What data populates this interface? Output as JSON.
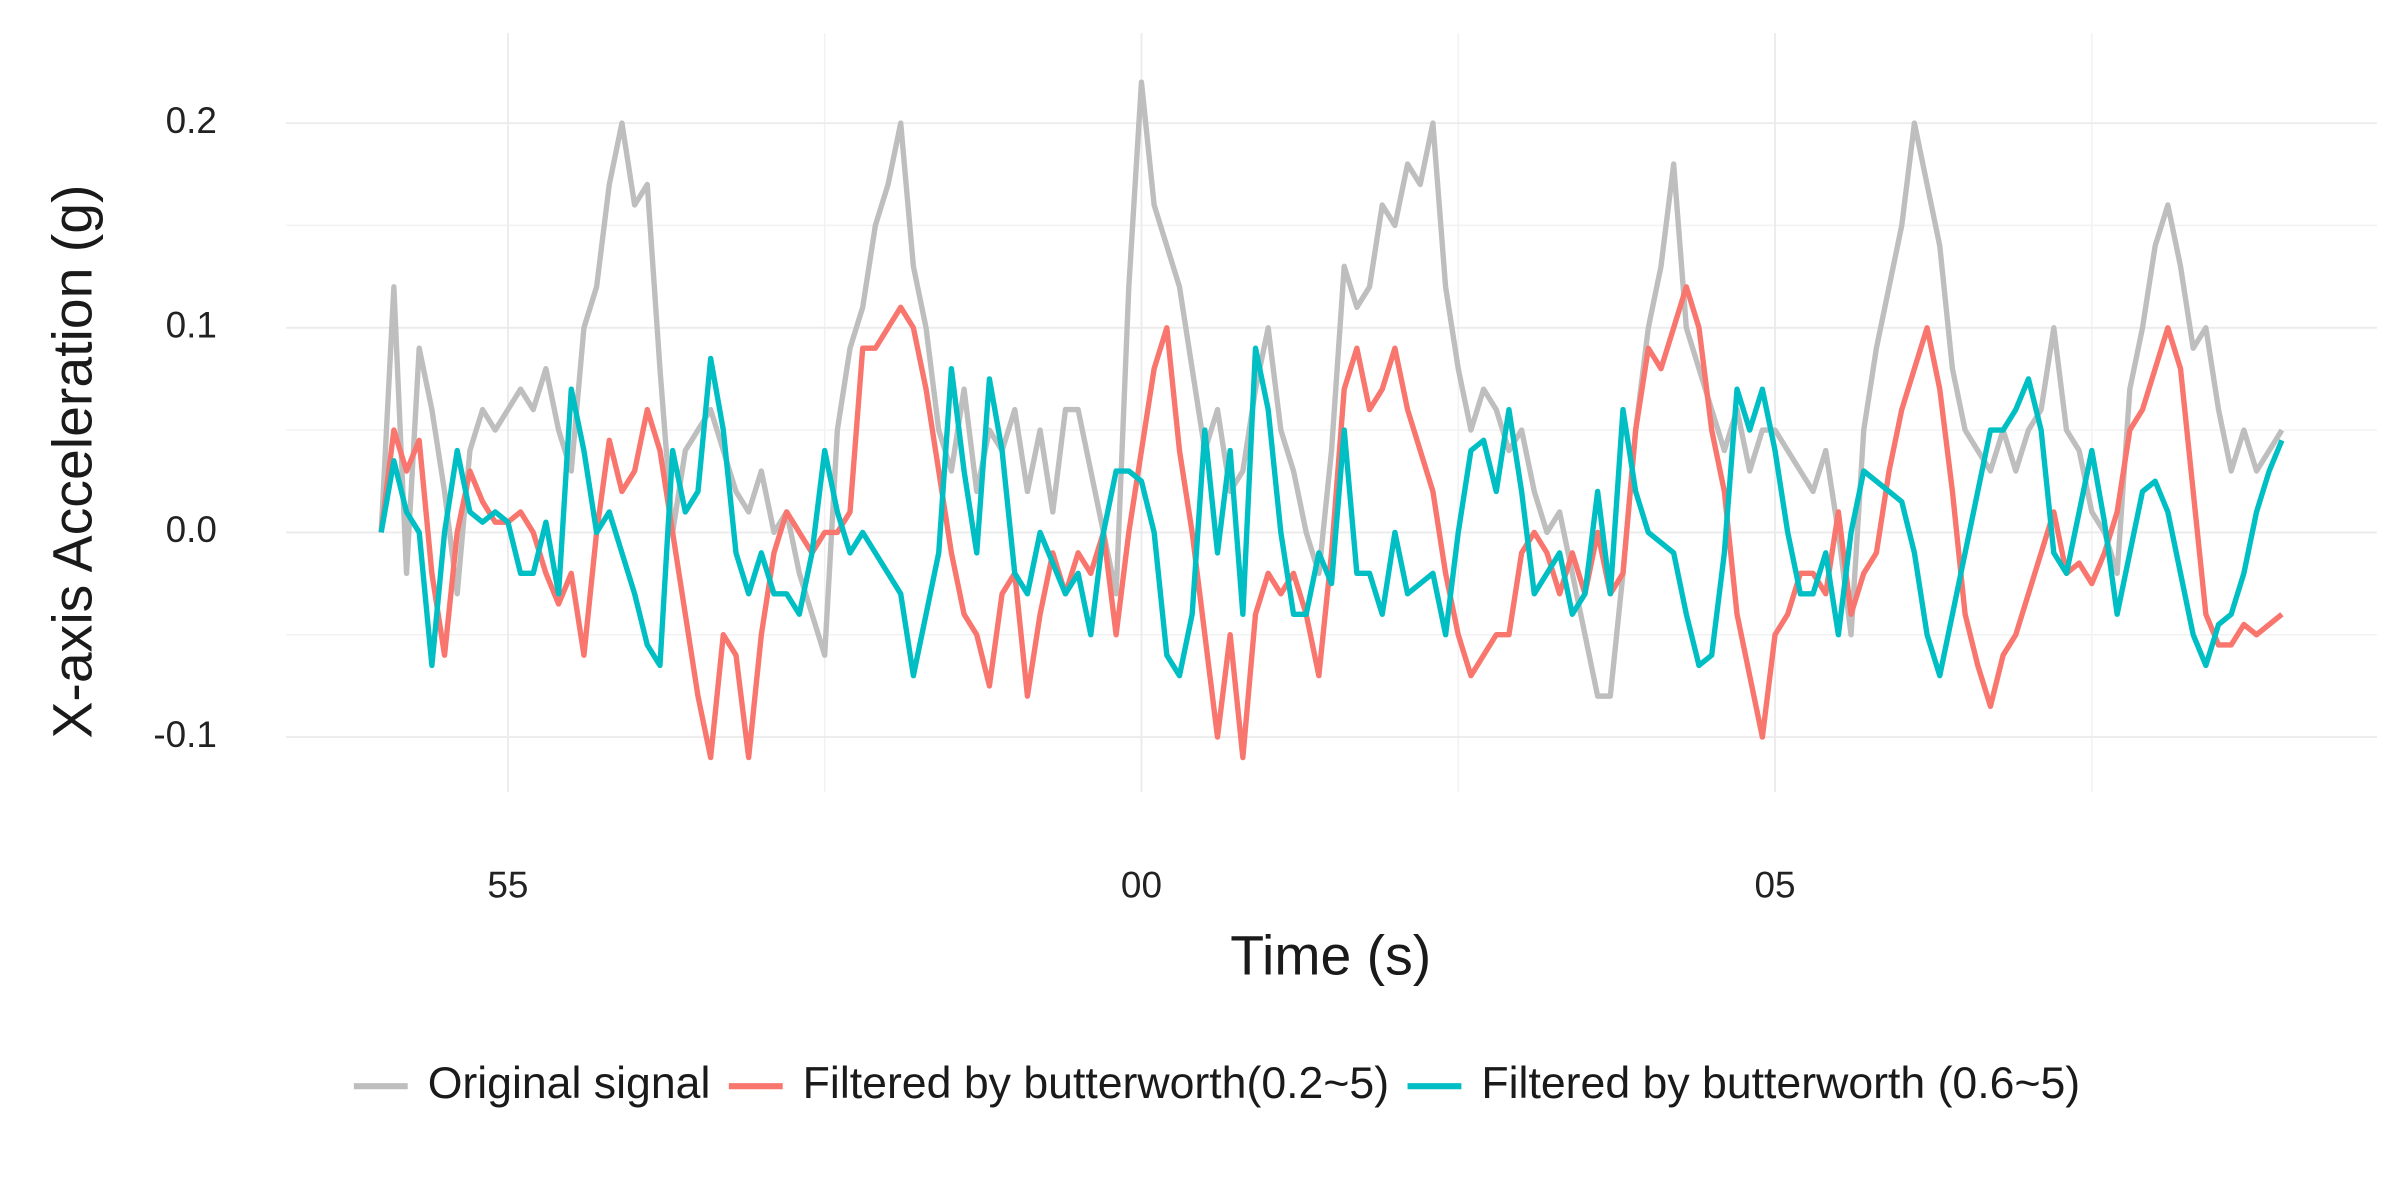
{
  "chart_data": {
    "type": "line",
    "x_label": "Time (s)",
    "y_label": "X-axis Acceleration (g)",
    "x": [
      54.0,
      54.1,
      54.2,
      54.3,
      54.4,
      54.5,
      54.6,
      54.7,
      54.8,
      54.9,
      55.0,
      55.1,
      55.2,
      55.3,
      55.4,
      55.5,
      55.6,
      55.7,
      55.8,
      55.9,
      56.0,
      56.1,
      56.2,
      56.3,
      56.4,
      56.5,
      56.6,
      56.7,
      56.8,
      56.9,
      57.0,
      57.1,
      57.2,
      57.3,
      57.4,
      57.5,
      57.6,
      57.7,
      57.8,
      57.9,
      58.0,
      58.1,
      58.2,
      58.3,
      58.4,
      58.5,
      58.6,
      58.7,
      58.8,
      58.9,
      59.0,
      59.1,
      59.2,
      59.3,
      59.4,
      59.5,
      59.6,
      59.7,
      59.8,
      59.9,
      60.0,
      60.1,
      60.2,
      60.3,
      60.4,
      60.5,
      60.6,
      60.7,
      60.8,
      60.9,
      61.0,
      61.1,
      61.2,
      61.3,
      61.4,
      61.5,
      61.6,
      61.7,
      61.8,
      61.9,
      62.0,
      62.1,
      62.2,
      62.3,
      62.4,
      62.5,
      62.6,
      62.7,
      62.8,
      62.9,
      63.0,
      63.1,
      63.2,
      63.3,
      63.4,
      63.5,
      63.6,
      63.7,
      63.8,
      63.9,
      64.0,
      64.1,
      64.2,
      64.3,
      64.4,
      64.5,
      64.6,
      64.7,
      64.8,
      64.9,
      65.0,
      65.1,
      65.2,
      65.3,
      65.4,
      65.5,
      65.6,
      65.7,
      65.8,
      65.9,
      66.0,
      66.1,
      66.2,
      66.3,
      66.4,
      66.5,
      66.6,
      66.7,
      66.8,
      66.9,
      67.0,
      67.1,
      67.2,
      67.3,
      67.4,
      67.5,
      67.6,
      67.7,
      67.8,
      67.9,
      68.0,
      68.1,
      68.2,
      68.3,
      68.4,
      68.5,
      68.6,
      68.7,
      68.8,
      68.9,
      69.0
    ],
    "series": [
      {
        "name": "Original signal",
        "color": "#bebebe",
        "values": [
          0.0,
          0.12,
          -0.02,
          0.09,
          0.06,
          0.02,
          -0.03,
          0.04,
          0.06,
          0.05,
          0.06,
          0.07,
          0.06,
          0.08,
          0.05,
          0.03,
          0.1,
          0.12,
          0.17,
          0.2,
          0.16,
          0.17,
          0.08,
          0.0,
          0.04,
          0.05,
          0.06,
          0.04,
          0.02,
          0.01,
          0.03,
          0.0,
          0.01,
          -0.02,
          -0.04,
          -0.06,
          0.05,
          0.09,
          0.11,
          0.15,
          0.17,
          0.2,
          0.13,
          0.1,
          0.05,
          0.03,
          0.07,
          0.02,
          0.05,
          0.04,
          0.06,
          0.02,
          0.05,
          0.01,
          0.06,
          0.06,
          0.03,
          0.0,
          -0.03,
          0.12,
          0.22,
          0.16,
          0.14,
          0.12,
          0.08,
          0.04,
          0.06,
          0.02,
          0.03,
          0.07,
          0.1,
          0.05,
          0.03,
          0.0,
          -0.02,
          0.04,
          0.13,
          0.11,
          0.12,
          0.16,
          0.15,
          0.18,
          0.17,
          0.2,
          0.12,
          0.08,
          0.05,
          0.07,
          0.06,
          0.04,
          0.05,
          0.02,
          0.0,
          0.01,
          -0.02,
          -0.05,
          -0.08,
          -0.08,
          -0.02,
          0.05,
          0.1,
          0.13,
          0.18,
          0.1,
          0.08,
          0.06,
          0.04,
          0.06,
          0.03,
          0.05,
          0.05,
          0.04,
          0.03,
          0.02,
          0.04,
          0.0,
          -0.05,
          0.05,
          0.09,
          0.12,
          0.15,
          0.2,
          0.17,
          0.14,
          0.08,
          0.05,
          0.04,
          0.03,
          0.05,
          0.03,
          0.05,
          0.06,
          0.1,
          0.05,
          0.04,
          0.01,
          0.0,
          -0.02,
          0.07,
          0.1,
          0.14,
          0.16,
          0.13,
          0.09,
          0.1,
          0.06,
          0.03,
          0.05,
          0.03,
          0.04,
          0.05
        ]
      },
      {
        "name": "Filtered by butterworth(0.2~5)",
        "color": "#f8766d",
        "values": [
          0.0,
          0.05,
          0.03,
          0.045,
          -0.02,
          -0.06,
          0.0,
          0.03,
          0.015,
          0.005,
          0.005,
          0.01,
          0.0,
          -0.02,
          -0.035,
          -0.02,
          -0.06,
          0.0,
          0.045,
          0.02,
          0.03,
          0.06,
          0.04,
          0.0,
          -0.04,
          -0.08,
          -0.11,
          -0.05,
          -0.06,
          -0.11,
          -0.05,
          -0.01,
          0.01,
          0.0,
          -0.01,
          0.0,
          0.0,
          0.01,
          0.09,
          0.09,
          0.1,
          0.11,
          0.1,
          0.07,
          0.03,
          -0.01,
          -0.04,
          -0.05,
          -0.075,
          -0.03,
          -0.02,
          -0.08,
          -0.04,
          -0.01,
          -0.03,
          -0.01,
          -0.02,
          0.0,
          -0.05,
          0.0,
          0.04,
          0.08,
          0.1,
          0.04,
          0.0,
          -0.05,
          -0.1,
          -0.05,
          -0.11,
          -0.04,
          -0.02,
          -0.03,
          -0.02,
          -0.04,
          -0.07,
          -0.01,
          0.07,
          0.09,
          0.06,
          0.07,
          0.09,
          0.06,
          0.04,
          0.02,
          -0.02,
          -0.05,
          -0.07,
          -0.06,
          -0.05,
          -0.05,
          -0.01,
          0.0,
          -0.01,
          -0.03,
          -0.01,
          -0.03,
          0.0,
          -0.03,
          -0.02,
          0.05,
          0.09,
          0.08,
          0.1,
          0.12,
          0.1,
          0.05,
          0.02,
          -0.04,
          -0.07,
          -0.1,
          -0.05,
          -0.04,
          -0.02,
          -0.02,
          -0.03,
          0.01,
          -0.04,
          -0.02,
          -0.01,
          0.03,
          0.06,
          0.08,
          0.1,
          0.07,
          0.02,
          -0.04,
          -0.065,
          -0.085,
          -0.06,
          -0.05,
          -0.03,
          -0.01,
          0.01,
          -0.02,
          -0.015,
          -0.025,
          -0.01,
          0.01,
          0.05,
          0.06,
          0.08,
          0.1,
          0.08,
          0.02,
          -0.04,
          -0.055,
          -0.055,
          -0.045,
          -0.05,
          -0.045,
          -0.04
        ]
      },
      {
        "name": "Filtered by butterworth (0.6~5)",
        "color": "#00bfc4",
        "values": [
          0.0,
          0.035,
          0.01,
          0.0,
          -0.065,
          0.0,
          0.04,
          0.01,
          0.005,
          0.01,
          0.005,
          -0.02,
          -0.02,
          0.005,
          -0.03,
          0.07,
          0.04,
          0.0,
          0.01,
          -0.01,
          -0.03,
          -0.055,
          -0.065,
          0.04,
          0.01,
          0.02,
          0.085,
          0.05,
          -0.01,
          -0.03,
          -0.01,
          -0.03,
          -0.03,
          -0.04,
          -0.01,
          0.04,
          0.01,
          -0.01,
          0.0,
          -0.01,
          -0.02,
          -0.03,
          -0.07,
          -0.04,
          -0.01,
          0.08,
          0.03,
          -0.01,
          0.075,
          0.04,
          -0.02,
          -0.03,
          0.0,
          -0.015,
          -0.03,
          -0.02,
          -0.05,
          0.0,
          0.03,
          0.03,
          0.025,
          0.0,
          -0.06,
          -0.07,
          -0.04,
          0.05,
          -0.01,
          0.04,
          -0.04,
          0.09,
          0.06,
          0.0,
          -0.04,
          -0.04,
          -0.01,
          -0.025,
          0.05,
          -0.02,
          -0.02,
          -0.04,
          0.0,
          -0.03,
          -0.025,
          -0.02,
          -0.05,
          0.0,
          0.04,
          0.045,
          0.02,
          0.06,
          0.02,
          -0.03,
          -0.02,
          -0.01,
          -0.04,
          -0.03,
          0.02,
          -0.03,
          0.06,
          0.02,
          0.0,
          -0.005,
          -0.01,
          -0.04,
          -0.065,
          -0.06,
          -0.01,
          0.07,
          0.05,
          0.07,
          0.04,
          0.0,
          -0.03,
          -0.03,
          -0.01,
          -0.05,
          0.0,
          0.03,
          0.025,
          0.02,
          0.015,
          -0.01,
          -0.05,
          -0.07,
          -0.04,
          -0.01,
          0.02,
          0.05,
          0.05,
          0.06,
          0.075,
          0.05,
          -0.01,
          -0.02,
          0.01,
          0.04,
          0.005,
          -0.04,
          -0.01,
          0.02,
          0.025,
          0.01,
          -0.02,
          -0.05,
          -0.065,
          -0.045,
          -0.04,
          -0.02,
          0.01,
          0.03,
          0.045
        ]
      }
    ],
    "xlim": [
      53.25,
      69.75
    ],
    "xticks": [
      55,
      {
        "value": 60,
        "label": "00"
      },
      {
        "value": 65,
        "label": "05"
      }
    ],
    "x_minor_grid": [
      57.5,
      62.5,
      67.5
    ],
    "ylim": [
      -0.127,
      0.244
    ],
    "yticks": [
      -0.1,
      {
        "value": 0,
        "label": "0.0"
      },
      0.1,
      0.2
    ],
    "y_minor_grid": [
      -0.05,
      0.05,
      0.15
    ],
    "grid": true,
    "legend": "bottom"
  }
}
